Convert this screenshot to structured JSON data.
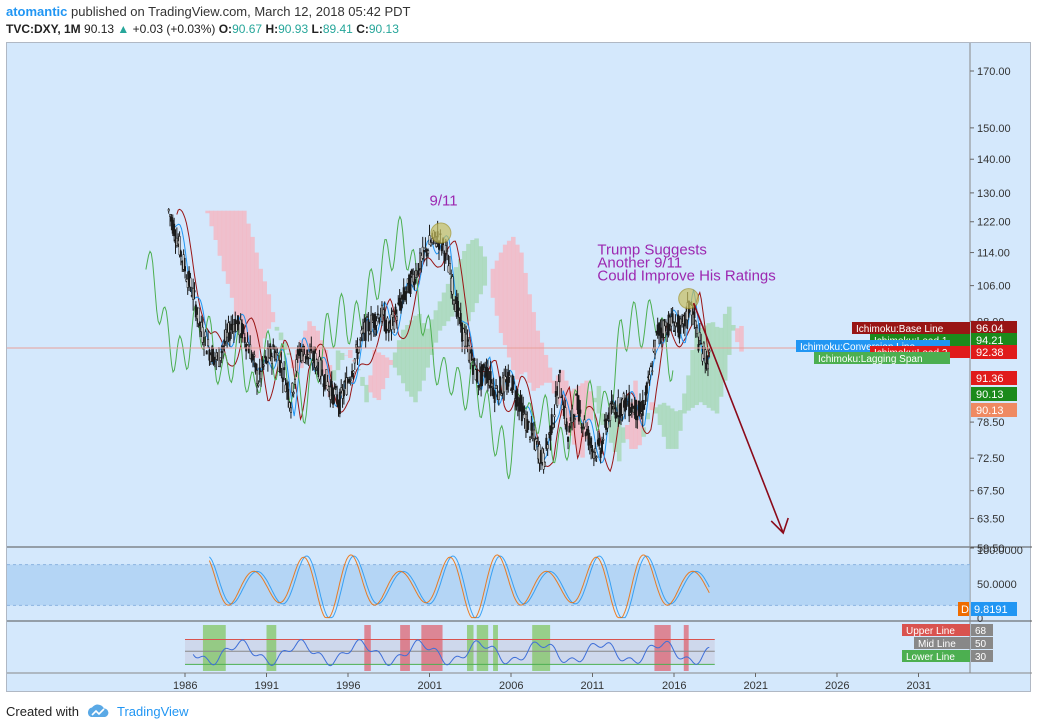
{
  "header": {
    "user": "atomantic",
    "published_text": "published on TradingView.com, March 12, 2018 05:42 PDT",
    "symbol": "TVC:DXY, 1M",
    "last": "90.13",
    "change": "+0.03 (+0.03%)",
    "open_label": "O:",
    "open": "90.67",
    "high_label": "H:",
    "high": "90.93",
    "low_label": "L:",
    "low": "89.41",
    "close_label": "C:",
    "close": "90.13"
  },
  "footer": {
    "created_with": "Created with",
    "brand": "TradingView"
  },
  "annotations": {
    "nine_eleven": "9/11",
    "trump_line1": "Trump Suggests",
    "trump_line2": "Another 9/11",
    "trump_line3": "Could Improve His Ratings"
  },
  "colors": {
    "background": "#d4e8fc",
    "candle": "#1a1a1a",
    "cloud_bull": "#a8d8b8",
    "cloud_bear": "#f3b8c4",
    "annotation": "#9c27b0",
    "arrow": "#8b0a1a",
    "base_line": "#991515",
    "lead1": "#1b8a1b",
    "lead2": "#e01b1b",
    "lagging": "#4caf50",
    "conversion": "#2196f3",
    "rsi_upper": "#d9534f",
    "rsi_mid": "#888888",
    "rsi_lower": "#4caf50",
    "highlight_green": "#7dc45a",
    "highlight_red": "#e05c6a"
  },
  "chart_data": {
    "type": "candlestick",
    "title": "TVC:DXY, 1M",
    "x_tick_labels": [
      "1986",
      "1991",
      "1996",
      "2001",
      "2006",
      "2011",
      "2016",
      "2021",
      "2026",
      "2031"
    ],
    "y_tick_labels": [
      "170.00",
      "150.00",
      "140.00",
      "130.00",
      "122.00",
      "114.00",
      "106.00",
      "98.00",
      "78.50",
      "72.50",
      "67.50",
      "63.50",
      "59.50"
    ],
    "y_scale": "log",
    "series": [
      {
        "name": "DXY monthly close",
        "x": [
          1985.0,
          1985.5,
          1986.0,
          1986.5,
          1987.0,
          1987.5,
          1988.0,
          1989.0,
          1989.5,
          1990.0,
          1990.5,
          1991.0,
          1991.5,
          1992.0,
          1992.5,
          1993.0,
          1994.0,
          1995.0,
          1995.5,
          1996.0,
          1997.0,
          1998.0,
          1998.5,
          1999.0,
          2000.0,
          2001.0,
          2001.5,
          2002.0,
          2002.5,
          2003.0,
          2004.0,
          2004.5,
          2005.0,
          2006.0,
          2007.0,
          2008.0,
          2008.5,
          2009.0,
          2009.5,
          2010.0,
          2011.0,
          2011.5,
          2012.0,
          2013.0,
          2014.0,
          2014.5,
          2015.0,
          2016.0,
          2016.5,
          2017.0,
          2017.5,
          2018.0
        ],
        "y": [
          125.0,
          118.0,
          110.0,
          104.0,
          96.0,
          92.0,
          90.0,
          98.0,
          96.0,
          92.0,
          86.0,
          90.0,
          92.0,
          88.0,
          82.0,
          92.0,
          90.0,
          84.0,
          82.0,
          86.0,
          96.0,
          100.0,
          96.0,
          100.0,
          108.0,
          116.0,
          118.0,
          114.0,
          104.0,
          96.0,
          86.0,
          88.0,
          84.0,
          86.0,
          78.0,
          72.0,
          78.0,
          86.0,
          76.0,
          82.0,
          74.0,
          74.0,
          80.0,
          82.0,
          80.0,
          86.0,
          96.0,
          98.0,
          96.0,
          102.0,
          94.0,
          90.13
        ]
      }
    ],
    "price_labels": [
      {
        "label": "Ichimoku:Base Line",
        "value": "96.04",
        "color": "#991515"
      },
      {
        "label": "Ichimoku:Lead 1",
        "value": "94.21",
        "color": "#1b8a1b"
      },
      {
        "label": "Ichimoku:Conversion Line",
        "value": "",
        "color": "#2196f3"
      },
      {
        "label": "Ichimoku:Lead 2",
        "value": "92.38",
        "color": "#e01b1b"
      },
      {
        "label": "Ichimoku:Lagging Span",
        "value": "",
        "color": "#4caf50"
      },
      {
        "label": "",
        "value": "91.36",
        "color": "#e01b1b"
      },
      {
        "label": "",
        "value": "90.13",
        "color": "#1b8a1b"
      },
      {
        "label": "",
        "value": "90.13",
        "color": "#ef8a62"
      }
    ],
    "stochastic": {
      "y_tick_labels": [
        "100.0000",
        "50.0000",
        "0"
      ],
      "value_labels": [
        {
          "label": "D",
          "color": "#ef6c00"
        },
        {
          "label": "9.8191",
          "color": "#2196f3"
        }
      ]
    },
    "rsi": {
      "levels": [
        {
          "label": "Upper Line",
          "value": "68",
          "color": "#d9534f"
        },
        {
          "label": "Mid Line",
          "value": "50",
          "color": "#888888"
        },
        {
          "label": "Lower Line",
          "value": "30",
          "color": "#4caf50"
        }
      ]
    }
  }
}
